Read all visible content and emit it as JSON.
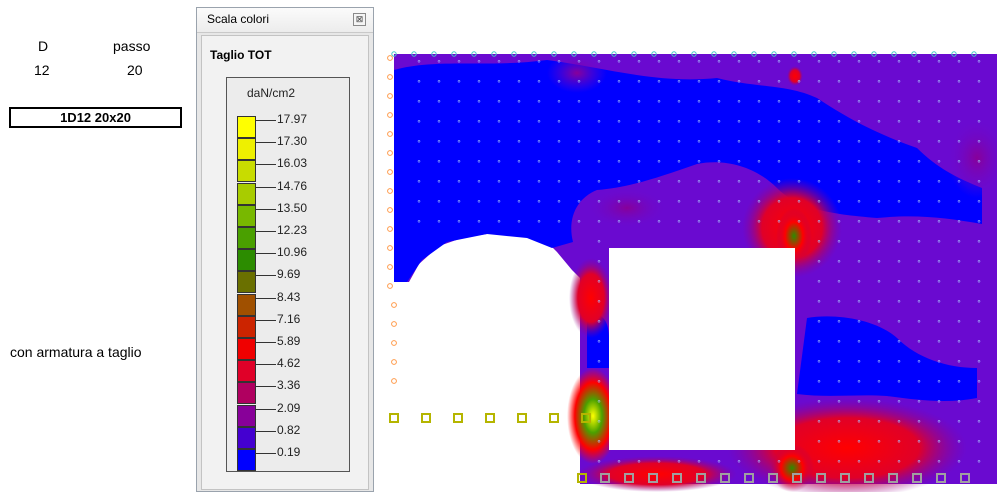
{
  "sheet": {
    "label_D": "D",
    "label_passo": "passo",
    "value_D": "12",
    "value_passo": "20",
    "rebar_box": "1D12 20x20",
    "note": "con armatura a taglio"
  },
  "legend_window": {
    "title": "Scala colori",
    "close_glyph": "⊠",
    "panel_title": "Taglio TOT",
    "unit": "daN/cm2",
    "entries": [
      {
        "value": "17.97",
        "color": "#ffff00"
      },
      {
        "value": "17.30",
        "color": "#eef000"
      },
      {
        "value": "16.03",
        "color": "#c8dc00"
      },
      {
        "value": "14.76",
        "color": "#a8cc00"
      },
      {
        "value": "13.50",
        "color": "#78b800"
      },
      {
        "value": "12.23",
        "color": "#4aa000"
      },
      {
        "value": "10.96",
        "color": "#2c8c00"
      },
      {
        "value": "9.69",
        "color": "#6a7000"
      },
      {
        "value": "8.43",
        "color": "#a05000"
      },
      {
        "value": "7.16",
        "color": "#cc2400"
      },
      {
        "value": "5.89",
        "color": "#f00000"
      },
      {
        "value": "4.62",
        "color": "#e00028"
      },
      {
        "value": "3.36",
        "color": "#b00060"
      },
      {
        "value": "2.09",
        "color": "#880099"
      },
      {
        "value": "0.82",
        "color": "#4400d0"
      },
      {
        "value": "0.19",
        "color": "#0000ff"
      }
    ]
  },
  "plot": {
    "colors": {
      "low": "#0000ff",
      "mid": "#6a0ad0",
      "high": "#ff0000",
      "peak": "#2c8c00"
    }
  }
}
